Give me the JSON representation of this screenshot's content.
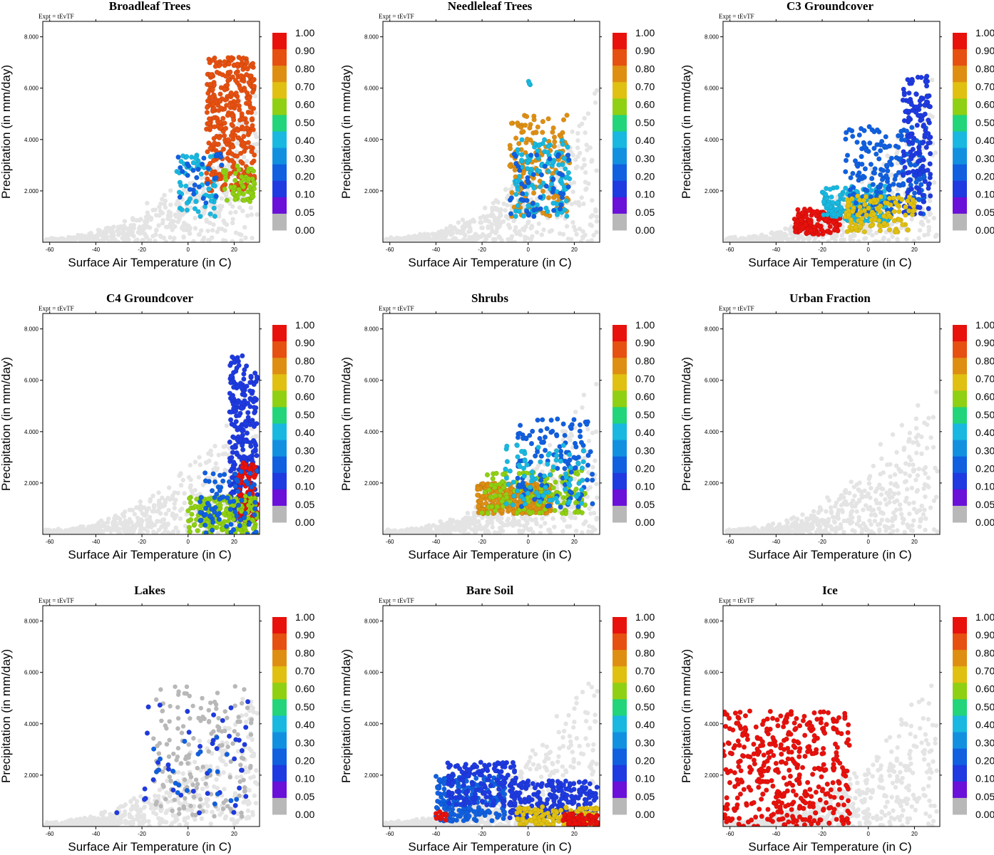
{
  "figure": {
    "expt_label": "Expt = tEvTF"
  },
  "chart_data": [
    {
      "type": "scatter",
      "title": "Broadleaf Trees",
      "xlabel": "Surface Air Temperature (in C)",
      "ylabel": "Precipitation (in mm/day)",
      "xlim": [
        -63,
        31
      ],
      "ylim": [
        0,
        8.6
      ],
      "xticks": [
        -60,
        -40,
        -20,
        0,
        20
      ],
      "yticks": [
        2,
        4,
        6,
        8
      ],
      "ytick_labels": [
        "2.000",
        "4.000",
        "6.000",
        "8.000"
      ],
      "highlight": [
        {
          "x": [
            8,
            29
          ],
          "y": [
            2.0,
            7.2
          ],
          "value": 0.85,
          "n": 380
        },
        {
          "x": [
            -5,
            12
          ],
          "y": [
            1.0,
            3.4
          ],
          "value": 0.35,
          "n": 60
        },
        {
          "x": [
            15,
            29
          ],
          "y": [
            1.5,
            3.0
          ],
          "value": 0.55,
          "n": 60
        },
        {
          "x": [
            -5,
            15
          ],
          "y": [
            1.5,
            3.5
          ],
          "value": 0.15,
          "n": 30
        }
      ]
    },
    {
      "type": "scatter",
      "title": "Needleleaf Trees",
      "xlabel": "Surface Air Temperature (in C)",
      "ylabel": "Precipitation (in mm/day)",
      "xlim": [
        -63,
        31
      ],
      "ylim": [
        0,
        8.6
      ],
      "xticks": [
        -60,
        -40,
        -20,
        0,
        20
      ],
      "yticks": [
        2,
        4,
        6,
        8
      ],
      "ytick_labels": [
        "2.000",
        "4.000",
        "6.000",
        "8.000"
      ],
      "highlight": [
        {
          "x": [
            -8,
            18
          ],
          "y": [
            1.0,
            5.0
          ],
          "value": 0.7,
          "n": 160
        },
        {
          "x": [
            -6,
            18
          ],
          "y": [
            1.0,
            4.0
          ],
          "value": 0.35,
          "n": 120
        },
        {
          "x": [
            -8,
            18
          ],
          "y": [
            1.0,
            3.5
          ],
          "value": 0.1,
          "n": 50
        },
        {
          "x": [
            0,
            1
          ],
          "y": [
            6.1,
            6.3
          ],
          "value": 0.3,
          "n": 3
        }
      ]
    },
    {
      "type": "scatter",
      "title": "C3 Groundcover",
      "xlabel": "Surface Air Temperature (in C)",
      "ylabel": "Precipitation (in mm/day)",
      "xlim": [
        -63,
        31
      ],
      "ylim": [
        0,
        8.6
      ],
      "xticks": [
        -60,
        -40,
        -20,
        0,
        20
      ],
      "yticks": [
        2,
        4,
        6,
        8
      ],
      "ytick_labels": [
        "2.000",
        "4.000",
        "6.000",
        "8.000"
      ],
      "highlight": [
        {
          "x": [
            -32,
            -12
          ],
          "y": [
            0.3,
            1.3
          ],
          "value": 0.95,
          "n": 140
        },
        {
          "x": [
            -20,
            10
          ],
          "y": [
            0.8,
            2.2
          ],
          "value": 0.35,
          "n": 180
        },
        {
          "x": [
            -10,
            25
          ],
          "y": [
            1.0,
            4.5
          ],
          "value": 0.12,
          "n": 200
        },
        {
          "x": [
            15,
            27
          ],
          "y": [
            1.0,
            6.5
          ],
          "value": 0.06,
          "n": 150
        },
        {
          "x": [
            -10,
            20
          ],
          "y": [
            0.4,
            1.8
          ],
          "value": 0.65,
          "n": 120
        }
      ]
    },
    {
      "type": "scatter",
      "title": "C4 Groundcover",
      "xlabel": "Surface Air Temperature (in C)",
      "ylabel": "Precipitation (in mm/day)",
      "xlim": [
        -63,
        31
      ],
      "ylim": [
        0,
        8.6
      ],
      "xticks": [
        -60,
        -40,
        -20,
        0,
        20
      ],
      "yticks": [
        2,
        4,
        6,
        8
      ],
      "ytick_labels": [
        "2.000",
        "4.000",
        "6.000",
        "8.000"
      ],
      "highlight": [
        {
          "x": [
            18,
            30
          ],
          "y": [
            0.5,
            7.0
          ],
          "value": 0.06,
          "n": 260
        },
        {
          "x": [
            22,
            30
          ],
          "y": [
            0.5,
            2.8
          ],
          "value": 0.9,
          "n": 100
        },
        {
          "x": [
            0,
            30
          ],
          "y": [
            0.0,
            1.5
          ],
          "value": 0.5,
          "n": 180
        },
        {
          "x": [
            5,
            30
          ],
          "y": [
            0.0,
            2.5
          ],
          "value": 0.12,
          "n": 80
        }
      ]
    },
    {
      "type": "scatter",
      "title": "Shrubs",
      "xlabel": "Surface Air Temperature (in C)",
      "ylabel": "Precipitation (in mm/day)",
      "xlim": [
        -63,
        31
      ],
      "ylim": [
        0,
        8.6
      ],
      "xticks": [
        -60,
        -40,
        -20,
        0,
        20
      ],
      "yticks": [
        2,
        4,
        6,
        8
      ],
      "ytick_labels": [
        "2.000",
        "4.000",
        "6.000",
        "8.000"
      ],
      "highlight": [
        {
          "x": [
            -22,
            10
          ],
          "y": [
            0.8,
            2.0
          ],
          "value": 0.72,
          "n": 320
        },
        {
          "x": [
            -20,
            25
          ],
          "y": [
            0.8,
            2.5
          ],
          "value": 0.55,
          "n": 140
        },
        {
          "x": [
            -5,
            28
          ],
          "y": [
            1.0,
            4.5
          ],
          "value": 0.12,
          "n": 120
        },
        {
          "x": [
            -10,
            25
          ],
          "y": [
            1.0,
            3.5
          ],
          "value": 0.35,
          "n": 80
        }
      ]
    },
    {
      "type": "scatter",
      "title": "Urban Fraction",
      "xlabel": "Surface Air Temperature (in C)",
      "ylabel": "Precipitation (in mm/day)",
      "xlim": [
        -63,
        31
      ],
      "ylim": [
        0,
        8.6
      ],
      "xticks": [
        -60,
        -40,
        -20,
        0,
        20
      ],
      "yticks": [
        2,
        4,
        6,
        8
      ],
      "ytick_labels": [
        "2.000",
        "4.000",
        "6.000",
        "8.000"
      ],
      "highlight": []
    },
    {
      "type": "scatter",
      "title": "Lakes",
      "xlabel": "Surface Air Temperature (in C)",
      "ylabel": "Precipitation (in mm/day)",
      "xlim": [
        -63,
        31
      ],
      "ylim": [
        0,
        8.6
      ],
      "xticks": [
        -60,
        -40,
        -20,
        0,
        20
      ],
      "yticks": [
        2,
        4,
        6,
        8
      ],
      "ytick_labels": [
        "2.000",
        "4.000",
        "6.000",
        "8.000"
      ],
      "highlight": [
        {
          "x": [
            -20,
            28
          ],
          "y": [
            0.5,
            5.0
          ],
          "value": 0.06,
          "n": 40
        },
        {
          "x": [
            -15,
            25
          ],
          "y": [
            0.8,
            3.5
          ],
          "value": 0.15,
          "n": 20
        },
        {
          "x": [
            -31,
            -29
          ],
          "y": [
            0.5,
            0.6
          ],
          "value": 0.06,
          "n": 1
        }
      ],
      "highlight_gray": [
        {
          "x": [
            -15,
            28
          ],
          "y": [
            0.3,
            5.5
          ],
          "value": 0.0,
          "n": 160
        }
      ]
    },
    {
      "type": "scatter",
      "title": "Bare Soil",
      "xlabel": "Surface Air Temperature (in C)",
      "ylabel": "Precipitation (in mm/day)",
      "xlim": [
        -63,
        31
      ],
      "ylim": [
        0,
        8.6
      ],
      "xticks": [
        -60,
        -40,
        -20,
        0,
        20
      ],
      "yticks": [
        2,
        4,
        6,
        8
      ],
      "ytick_labels": [
        "2.000",
        "4.000",
        "6.000",
        "8.000"
      ],
      "highlight": [
        {
          "x": [
            -40,
            -10
          ],
          "y": [
            0.2,
            2.0
          ],
          "value": 0.12,
          "n": 200
        },
        {
          "x": [
            -35,
            -5
          ],
          "y": [
            0.8,
            2.5
          ],
          "value": 0.06,
          "n": 140
        },
        {
          "x": [
            -8,
            30
          ],
          "y": [
            0.3,
            1.8
          ],
          "value": 0.06,
          "n": 220
        },
        {
          "x": [
            -5,
            30
          ],
          "y": [
            0.0,
            0.8
          ],
          "value": 0.6,
          "n": 120
        },
        {
          "x": [
            15,
            30
          ],
          "y": [
            0.0,
            0.5
          ],
          "value": 0.95,
          "n": 80
        },
        {
          "x": [
            -40,
            -35
          ],
          "y": [
            0.2,
            0.6
          ],
          "value": 0.95,
          "n": 10
        }
      ]
    },
    {
      "type": "scatter",
      "title": "Ice",
      "xlabel": "Surface Air Temperature (in C)",
      "ylabel": "Precipitation (in mm/day)",
      "xlim": [
        -63,
        31
      ],
      "ylim": [
        0,
        8.6
      ],
      "xticks": [
        -60,
        -40,
        -20,
        0,
        20
      ],
      "yticks": [
        2,
        4,
        6,
        8
      ],
      "ytick_labels": [
        "2.000",
        "4.000",
        "6.000",
        "8.000"
      ],
      "highlight": [
        {
          "x": [
            -63,
            -8
          ],
          "y": [
            0.0,
            4.5
          ],
          "value": 0.95,
          "n": 420
        }
      ]
    }
  ],
  "colorbar": {
    "labels": [
      "1.00",
      "0.90",
      "0.80",
      "0.70",
      "0.60",
      "0.50",
      "0.40",
      "0.30",
      "0.20",
      "0.10",
      "0.05",
      "0.00"
    ],
    "colors": [
      "#e8110c",
      "#e65010",
      "#de8f12",
      "#e0c010",
      "#8fd012",
      "#22d47a",
      "#18b8e0",
      "#1290e0",
      "#1060e0",
      "#1e3ae0",
      "#6a10d8",
      "#b8b8b8"
    ]
  },
  "background_points": {
    "color": "#e4e4e4",
    "description_cloud": "all grid cells temperature vs precipitation"
  }
}
